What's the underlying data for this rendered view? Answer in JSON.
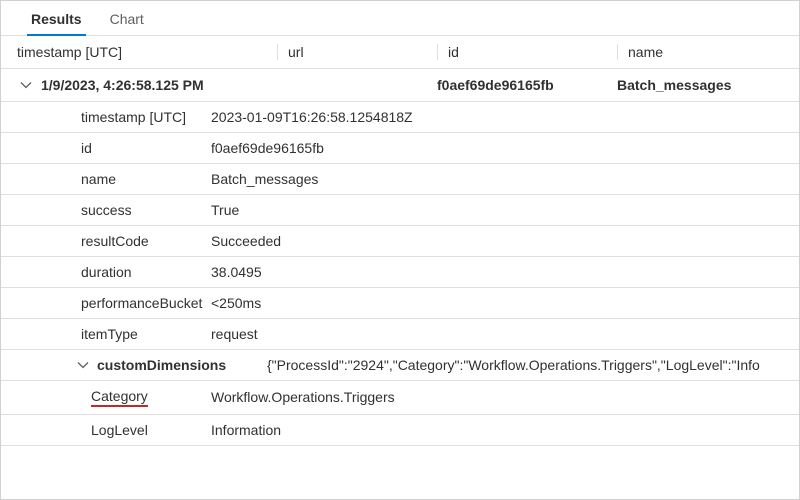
{
  "tabs": {
    "results": "Results",
    "chart": "Chart",
    "active": "results"
  },
  "columns": {
    "timestamp": "timestamp [UTC]",
    "url": "url",
    "id": "id",
    "name": "name"
  },
  "row": {
    "timestamp_display": "1/9/2023, 4:26:58.125 PM",
    "url": "",
    "id": "f0aef69de96165fb",
    "name": "Batch_messages"
  },
  "details": [
    {
      "key": "timestamp [UTC]",
      "value": "2023-01-09T16:26:58.1254818Z"
    },
    {
      "key": "id",
      "value": "f0aef69de96165fb"
    },
    {
      "key": "name",
      "value": "Batch_messages"
    },
    {
      "key": "success",
      "value": "True"
    },
    {
      "key": "resultCode",
      "value": "Succeeded"
    },
    {
      "key": "duration",
      "value": "38.0495"
    },
    {
      "key": "performanceBucket",
      "value": "<250ms"
    },
    {
      "key": "itemType",
      "value": "request"
    }
  ],
  "customDimensions": {
    "label": "customDimensions",
    "raw": "{\"ProcessId\":\"2924\",\"Category\":\"Workflow.Operations.Triggers\",\"LogLevel\":\"Info",
    "items": [
      {
        "key": "Category",
        "value": "Workflow.Operations.Triggers",
        "highlight": true
      },
      {
        "key": "LogLevel",
        "value": "Information"
      }
    ]
  },
  "colors": {
    "accent": "#0078d4",
    "highlight_underline": "#c3272b",
    "border": "#e1dfdd",
    "text": "#323130",
    "text_secondary": "#605e5c"
  }
}
